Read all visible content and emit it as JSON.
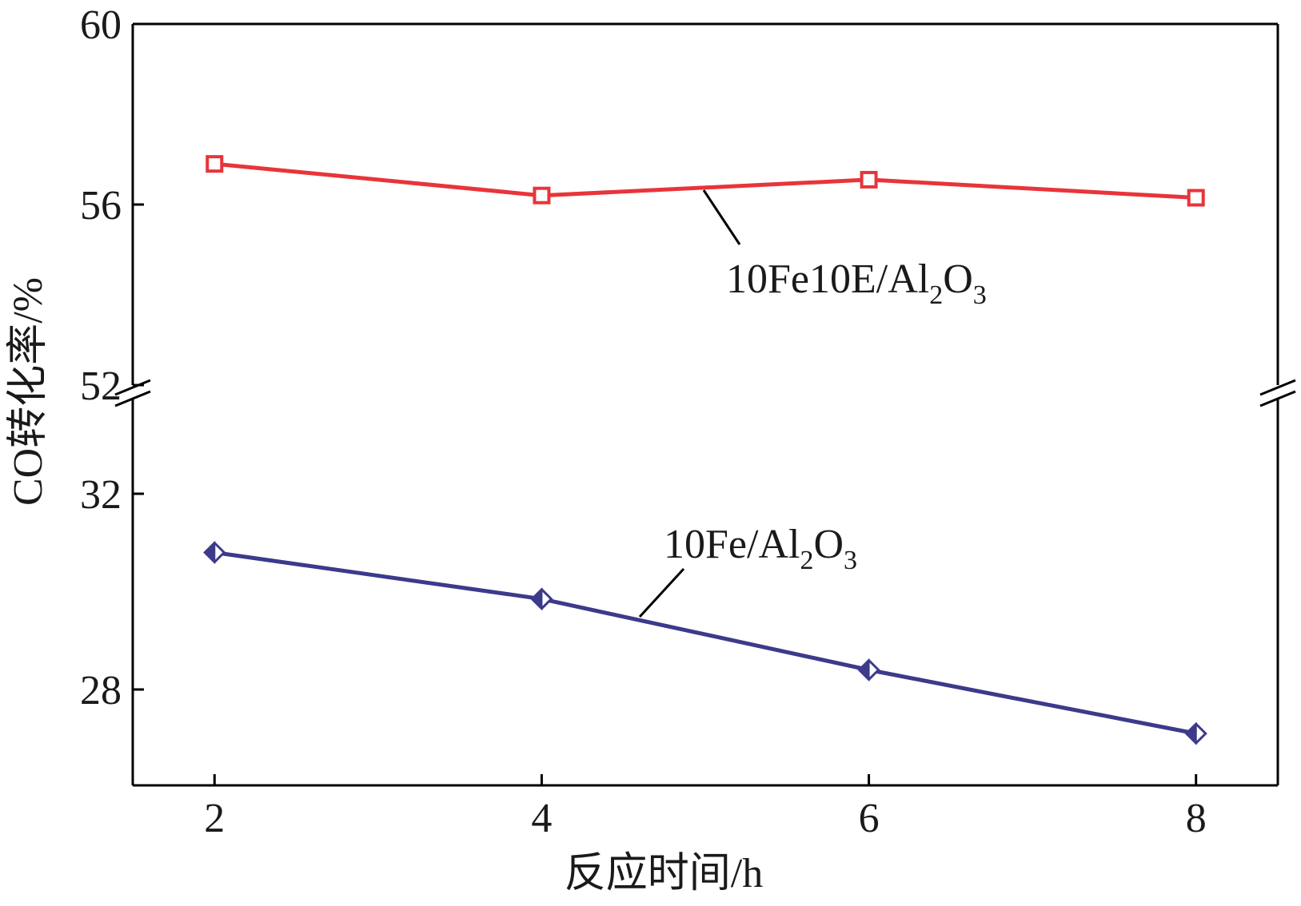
{
  "chart_data": {
    "type": "line",
    "xlabel": "反应时间/h",
    "ylabel": "CO转化率/%",
    "x": [
      2,
      4,
      6,
      8
    ],
    "xlim": [
      1.5,
      8.5
    ],
    "x_ticks": [
      "2",
      "4",
      "6",
      "8"
    ],
    "broken_y_axis": true,
    "y_upper_range": [
      52,
      60
    ],
    "y_lower_range": [
      26,
      35
    ],
    "y_ticks_upper": [
      "60",
      "56",
      "52"
    ],
    "y_ticks_lower": [
      "32",
      "28"
    ],
    "grid": false,
    "series": [
      {
        "name": "10Fe10E/Al2O3",
        "label_main": "10Fe10E/Al",
        "label_sub1": "2",
        "label_mid": "O",
        "label_sub2": "3",
        "color": "#e8343a",
        "marker": "square",
        "values": [
          56.9,
          56.2,
          56.55,
          56.15
        ]
      },
      {
        "name": "10Fe/Al2O3",
        "label_main": "10Fe/Al",
        "label_sub1": "2",
        "label_mid": "O",
        "label_sub2": "3",
        "color": "#3c3a8a",
        "marker": "diamond",
        "values": [
          30.8,
          29.85,
          28.4,
          27.1
        ]
      }
    ]
  }
}
